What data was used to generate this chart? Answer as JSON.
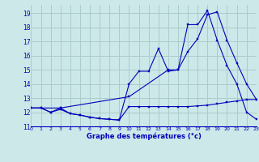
{
  "title": "Graphe des températures (°c)",
  "background_color": "#cce8e8",
  "grid_color": "#aacccc",
  "line_color": "#0000bb",
  "xlim": [
    0,
    23
  ],
  "ylim": [
    11,
    19.6
  ],
  "yticks": [
    11,
    12,
    13,
    14,
    15,
    16,
    17,
    18,
    19
  ],
  "xticks": [
    0,
    1,
    2,
    3,
    4,
    5,
    6,
    7,
    8,
    9,
    10,
    11,
    12,
    13,
    14,
    15,
    16,
    17,
    18,
    19,
    20,
    21,
    22,
    23
  ],
  "series1_x": [
    0,
    1,
    2,
    3,
    4,
    5,
    6,
    7,
    8,
    9,
    10,
    11,
    12,
    13,
    14,
    15,
    16,
    17,
    18,
    19,
    20,
    21,
    22,
    23
  ],
  "series1_y": [
    12.3,
    12.3,
    12.0,
    12.3,
    11.9,
    11.8,
    11.65,
    11.55,
    11.5,
    11.45,
    12.4,
    12.4,
    12.4,
    12.4,
    12.4,
    12.4,
    12.4,
    12.45,
    12.5,
    12.6,
    12.7,
    12.8,
    12.9,
    12.9
  ],
  "series2_x": [
    0,
    1,
    2,
    3,
    4,
    5,
    6,
    7,
    8,
    9,
    10,
    11,
    12,
    13,
    14,
    15,
    16,
    17,
    18,
    19,
    20,
    21,
    22,
    23
  ],
  "series2_y": [
    12.3,
    12.3,
    12.0,
    12.2,
    11.9,
    11.8,
    11.65,
    11.55,
    11.5,
    11.45,
    14.0,
    14.9,
    14.9,
    16.5,
    14.9,
    15.0,
    18.2,
    18.2,
    19.2,
    17.1,
    15.3,
    14.0,
    12.0,
    11.5
  ],
  "series3_x": [
    0,
    3,
    10,
    14,
    15,
    16,
    17,
    18,
    19,
    20,
    21,
    22,
    23
  ],
  "series3_y": [
    12.3,
    12.3,
    13.1,
    15.0,
    15.0,
    16.3,
    17.2,
    18.9,
    19.1,
    17.1,
    15.5,
    14.0,
    12.9
  ]
}
